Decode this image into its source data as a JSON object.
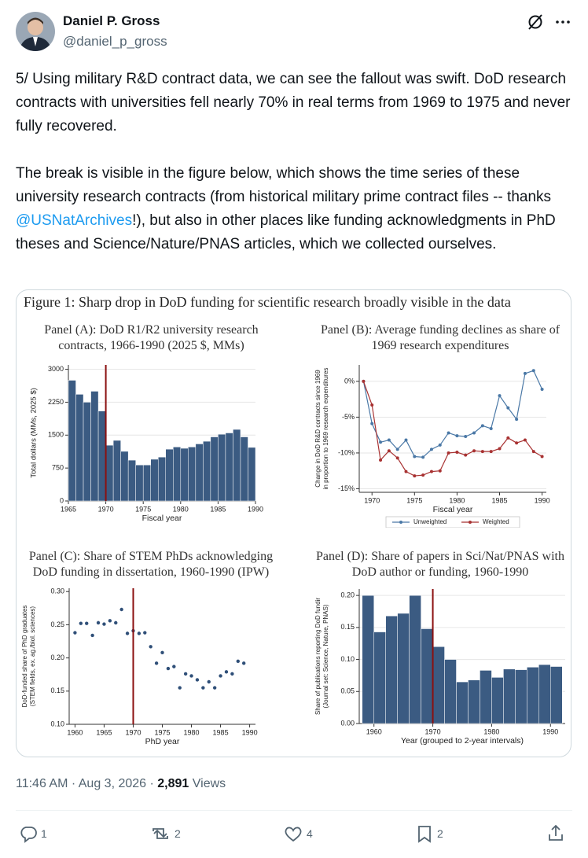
{
  "tweet": {
    "author": {
      "name": "Daniel P. Gross",
      "handle": "@daniel_p_gross"
    },
    "text": {
      "paragraph_1": "5/ Using military R&D contract data, we can see the fallout was swift. DoD research contracts with universities fell nearly 70% in real terms from 1969 to 1975 and never fully recovered.",
      "paragraph_2": [
        "The break is visible in the figure below, which shows the time series of these university research contracts (from historical military prime contract files -- thanks ",
        "@USNatArchives",
        "!), but also in other places like funding acknowledgments in PhD theses and Science/Nature/PNAS articles, which we collected ourselves."
      ]
    },
    "figure_title": "Figure 1: Sharp drop in DoD funding for scientific research broadly visible in the data",
    "meta": {
      "time_date": "11:46 AM · Aug 3, 2026 ·",
      "views": "2,891",
      "views_label": "Views"
    },
    "actions": {
      "replies": 1,
      "reposts": 2,
      "likes": 4,
      "bookmarks": 2
    }
  },
  "chart_data": [
    {
      "type": "histogram",
      "title": "Panel (A): DoD R1/R2 university research contracts, 1966-1990 (2025 $, MMs)",
      "bins": [
        1965,
        1966,
        1967,
        1968,
        1969,
        1970,
        1971,
        1972,
        1973,
        1974,
        1975,
        1976,
        1977,
        1978,
        1979,
        1980,
        1981,
        1982,
        1983,
        1984,
        1985,
        1986,
        1987,
        1988,
        1989,
        1990
      ],
      "values": [
        2750,
        2430,
        2250,
        2500,
        2050,
        1270,
        1380,
        1130,
        930,
        820,
        820,
        950,
        1000,
        1180,
        1230,
        1200,
        1230,
        1300,
        1360,
        1460,
        1520,
        1550,
        1630,
        1460,
        1220
      ],
      "color": "#3b5b82",
      "vline": 1970,
      "vline_color": "#8b1010",
      "xlim": [
        1965,
        1990
      ],
      "xticks": [
        1965,
        1970,
        1975,
        1980,
        1985,
        1990
      ],
      "ylim": [
        0,
        3100
      ],
      "yticks": [
        0,
        750,
        1500,
        2250,
        3000
      ],
      "xlabel": "Fiscal year",
      "ylabel": [
        "Total dollars (MMs, 2025 $)"
      ],
      "grid": true
    },
    {
      "type": "line",
      "title": "Panel (B): Average funding declines as share of 1969 research expenditures",
      "x": [
        1969,
        1970,
        1971,
        1972,
        1973,
        1974,
        1975,
        1976,
        1977,
        1978,
        1979,
        1980,
        1981,
        1982,
        1983,
        1984,
        1985,
        1986,
        1987,
        1988,
        1989,
        1990
      ],
      "series": [
        {
          "name": "Unweighted",
          "color": "#4a78a6",
          "values": [
            0,
            -5.9,
            -8.5,
            -8.2,
            -9.5,
            -8.2,
            -10.5,
            -10.6,
            -9.5,
            -8.9,
            -7.2,
            -7.6,
            -7.7,
            -7.2,
            -6.2,
            -6.6,
            -2.0,
            -3.7,
            -5.3,
            1.1,
            1.5,
            -1.1
          ]
        },
        {
          "name": "Weighted",
          "color": "#a83232",
          "values": [
            0,
            -3.3,
            -11.0,
            -9.7,
            -10.7,
            -12.6,
            -13.2,
            -13.1,
            -12.6,
            -12.5,
            -10.0,
            -9.9,
            -10.3,
            -9.7,
            -9.8,
            -9.8,
            -9.4,
            -7.9,
            -8.6,
            -8.2,
            -9.8,
            -10.5
          ]
        }
      ],
      "xlim": [
        1968.5,
        1990.5
      ],
      "xticks": [
        1970,
        1975,
        1980,
        1985,
        1990
      ],
      "ylim": [
        -15.5,
        2.3
      ],
      "yticks": [
        {
          "value": 0,
          "label": "0%"
        },
        {
          "value": -5,
          "label": "-5%"
        },
        {
          "value": -10,
          "label": "-10%"
        },
        {
          "value": -15,
          "label": "-15%"
        }
      ],
      "xlabel": "Fiscal year",
      "ylabel": [
        "Change in DoD R&D contracts since 1969",
        "in proportion to 1969 research expenditures"
      ],
      "grid": true,
      "legend": "below"
    },
    {
      "type": "scatter",
      "title": "Panel (C): Share of STEM PhDs acknowledging DoD funding in dissertation, 1960-1990 (IPW)",
      "x": [
        1960,
        1961,
        1962,
        1963,
        1964,
        1965,
        1966,
        1967,
        1968,
        1969,
        1970,
        1971,
        1972,
        1973,
        1974,
        1975,
        1976,
        1977,
        1978,
        1979,
        1980,
        1981,
        1982,
        1983,
        1984,
        1985,
        1986,
        1987,
        1988,
        1989
      ],
      "values": [
        0.238,
        0.252,
        0.252,
        0.234,
        0.253,
        0.251,
        0.256,
        0.253,
        0.273,
        0.237,
        0.241,
        0.237,
        0.238,
        0.217,
        0.192,
        0.208,
        0.184,
        0.187,
        0.155,
        0.176,
        0.173,
        0.167,
        0.155,
        0.164,
        0.155,
        0.173,
        0.179,
        0.176,
        0.195,
        0.192
      ],
      "color": "#2f4f78",
      "vline": 1970,
      "vline_color": "#8b1010",
      "xlim": [
        1959,
        1991
      ],
      "xticks": [
        1960,
        1965,
        1970,
        1975,
        1980,
        1985,
        1990
      ],
      "ylim": [
        0.1,
        0.305
      ],
      "yticks": [
        {
          "value": 0.3,
          "label": "0.30"
        },
        0.25,
        {
          "value": 0.2,
          "label": "0.20"
        },
        0.15,
        {
          "value": 0.1,
          "label": "0.10"
        }
      ],
      "xlabel": "PhD year",
      "ylabel": [
        "DoD-funded share of PhD graduates",
        "(STEM fields, ex. ag./biol. sciences)"
      ],
      "grid": false
    },
    {
      "type": "histogram",
      "title": "Panel (D): Share of papers in Sci/Nat/PNAS with DoD author or funding, 1960-1990",
      "bins": [
        1958,
        1960,
        1962,
        1964,
        1966,
        1968,
        1970,
        1972,
        1974,
        1976,
        1978,
        1980,
        1982,
        1984,
        1986,
        1988,
        1990,
        1992
      ],
      "values": [
        0.2,
        0.143,
        0.168,
        0.172,
        0.2,
        0.148,
        0.12,
        0.1,
        0.065,
        0.068,
        0.083,
        0.072,
        0.085,
        0.084,
        0.088,
        0.092,
        0.089
      ],
      "color": "#3b5b82",
      "vline": 1970,
      "vline_color": "#8b1010",
      "xlim": [
        1957.5,
        1992.5
      ],
      "xticks": [
        1960,
        1970,
        1980,
        1990
      ],
      "ylim": [
        0,
        0.21
      ],
      "yticks": [
        {
          "value": 0,
          "label": "0.00"
        },
        0.05,
        {
          "value": 0.1,
          "label": "0.10"
        },
        0.15,
        {
          "value": 0.2,
          "label": "0.20"
        }
      ],
      "xlabel": "Year (grouped to 2-year intervals)",
      "ylabel": [
        "Share of publications reporting DoD fundir",
        "(Journal set: Science, Nature, PNAS)"
      ],
      "grid": true
    }
  ]
}
